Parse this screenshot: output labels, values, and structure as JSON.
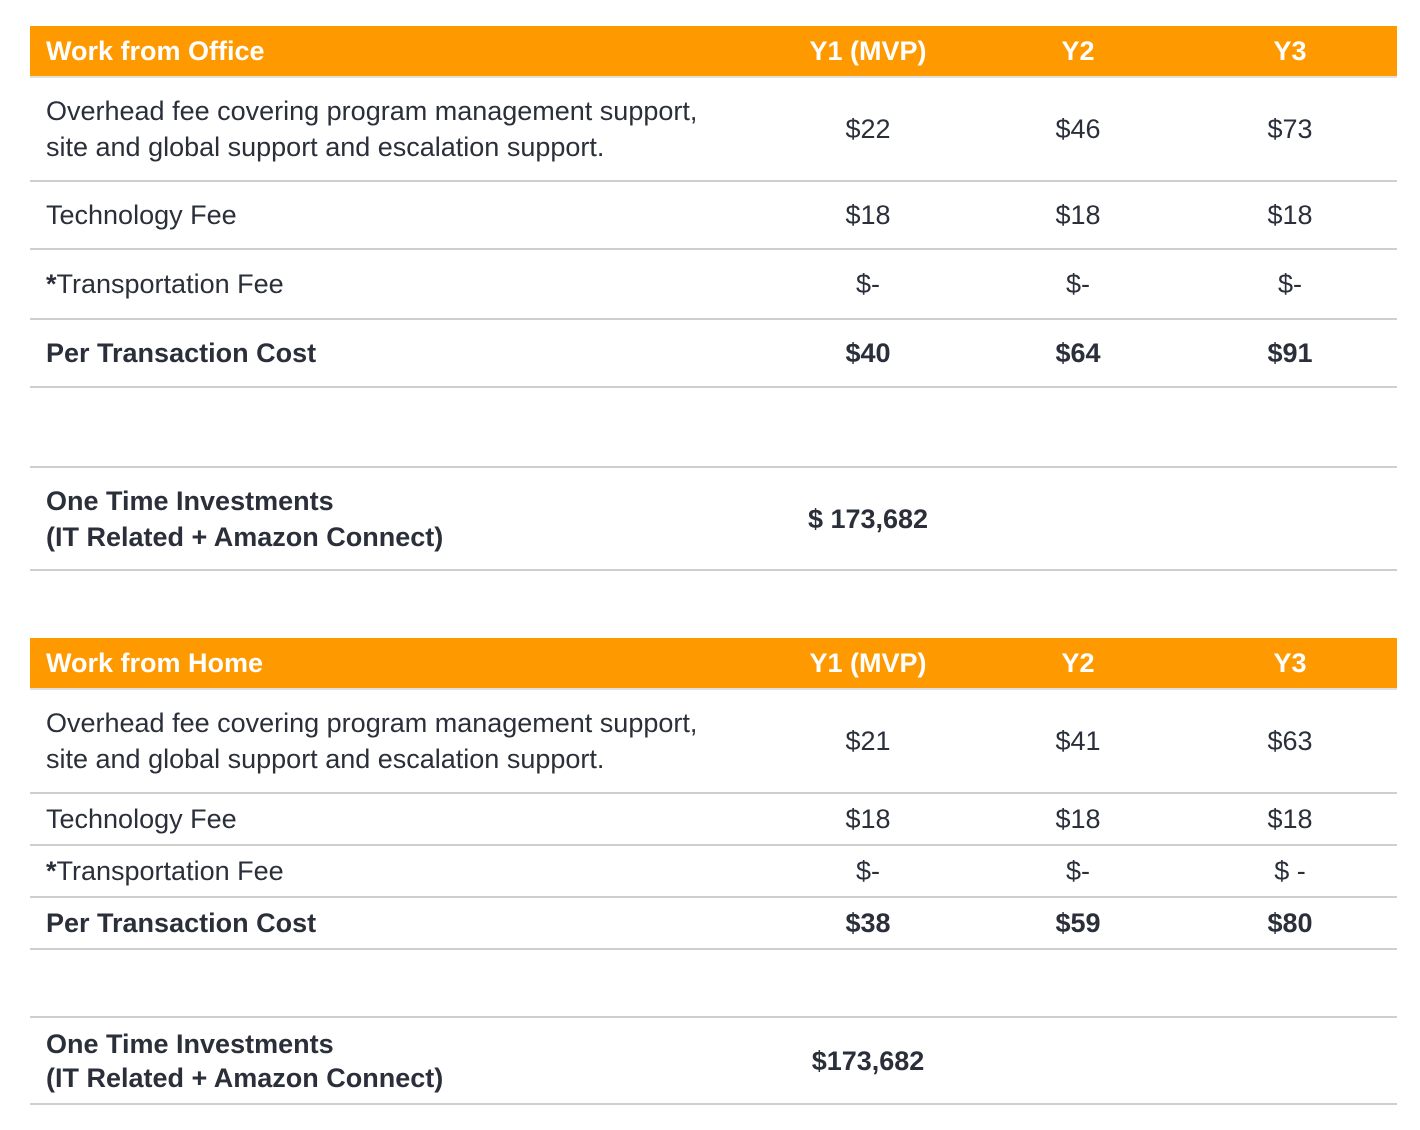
{
  "office": {
    "header": {
      "title": "Work from Office",
      "y1": "Y1 (MVP)",
      "y2": "Y2",
      "y3": "Y3"
    },
    "overhead": {
      "label": "Overhead fee covering program management support,\nsite and global support and escalation support.",
      "y1": "$22",
      "y2": "$46",
      "y3": "$73"
    },
    "technology": {
      "label": "Technology Fee",
      "y1": "$18",
      "y2": "$18",
      "y3": "$18"
    },
    "transportation": {
      "star": "*",
      "label": "Transportation Fee",
      "y1": "$-",
      "y2": "$-",
      "y3": "$-"
    },
    "per_transaction": {
      "label": "Per Transaction Cost",
      "y1": "$40",
      "y2": "$64",
      "y3": "$91"
    },
    "one_time": {
      "label": "One Time Investments\n(IT Related + Amazon Connect)",
      "value": "$ 173,682"
    }
  },
  "home": {
    "header": {
      "title": "Work from Home",
      "y1": "Y1 (MVP)",
      "y2": "Y2",
      "y3": "Y3"
    },
    "overhead": {
      "label": "Overhead fee covering program management support,\nsite and global support and escalation support.",
      "y1": "$21",
      "y2": "$41",
      "y3": "$63"
    },
    "technology": {
      "label": "Technology Fee",
      "y1": "$18",
      "y2": "$18",
      "y3": "$18"
    },
    "transportation": {
      "star": "*",
      "label": "Transportation Fee",
      "y1": "$-",
      "y2": "$-",
      "y3": "$ -"
    },
    "per_transaction": {
      "label": "Per Transaction Cost",
      "y1": "$38",
      "y2": "$59",
      "y3": "$80"
    },
    "one_time": {
      "label": "One Time Investments\n(IT Related + Amazon Connect)",
      "value": "$173,682"
    }
  }
}
